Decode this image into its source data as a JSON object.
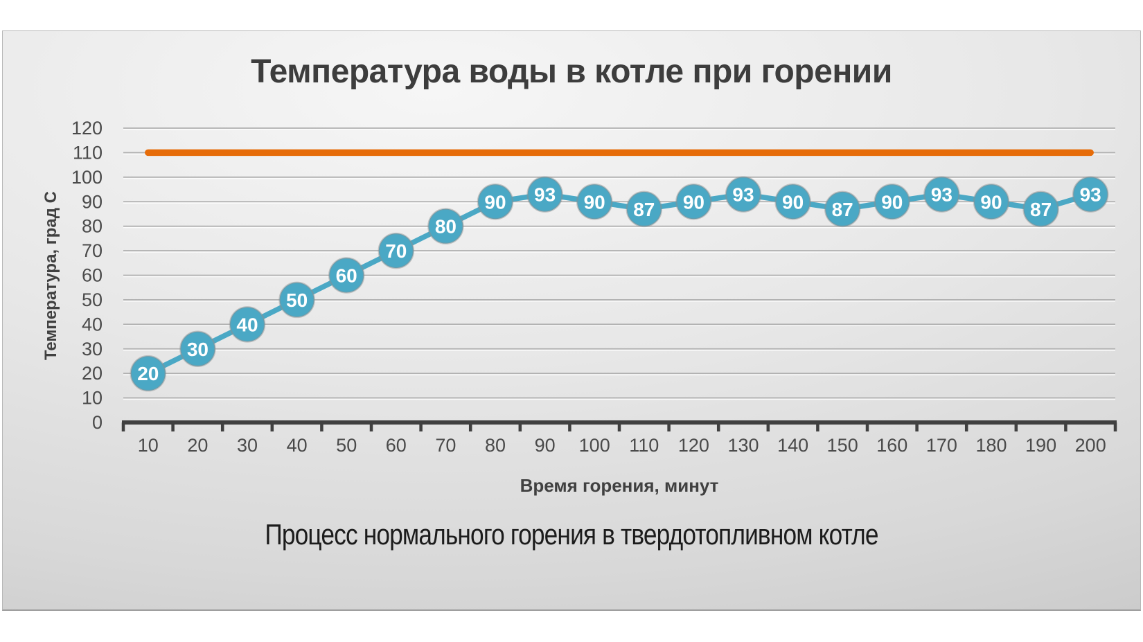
{
  "slide": {
    "caption": "Процесс нормального горения в твердотопливном котле"
  },
  "chart_data": {
    "type": "line",
    "title": "Температура воды в котле при горении",
    "xlabel": "Время горения, минут",
    "ylabel": "Температура, град С",
    "categories": [
      10,
      20,
      30,
      40,
      50,
      60,
      70,
      80,
      90,
      100,
      110,
      120,
      130,
      140,
      150,
      160,
      170,
      180,
      190,
      200
    ],
    "series": [
      {
        "values": [
          20,
          30,
          40,
          50,
          60,
          70,
          80,
          90,
          93,
          90,
          87,
          90,
          93,
          90,
          87,
          90,
          93,
          90,
          87,
          93
        ],
        "color": "#4AA8C5",
        "markers": true,
        "data_labels": true
      },
      {
        "values": [
          110,
          110,
          110,
          110,
          110,
          110,
          110,
          110,
          110,
          110,
          110,
          110,
          110,
          110,
          110,
          110,
          110,
          110,
          110,
          110
        ],
        "color": "#E66C09",
        "markers": false,
        "data_labels": false
      }
    ],
    "ylim": [
      0,
      120
    ],
    "ytick_step": 10,
    "yticks": [
      0,
      10,
      20,
      30,
      40,
      50,
      60,
      70,
      80,
      90,
      100,
      110,
      120
    ],
    "grid": "horizontal",
    "legend": "none"
  },
  "colors": {
    "series_main": "#4AA8C5",
    "series_limit": "#E66C09",
    "axis": "#404040",
    "tick_label": "#4a4a4a",
    "gridline": "#b0b0b0",
    "gridline_highlight": "#fbfbfb",
    "data_label_text": "#ffffff",
    "title_text": "#3d3d3d"
  }
}
